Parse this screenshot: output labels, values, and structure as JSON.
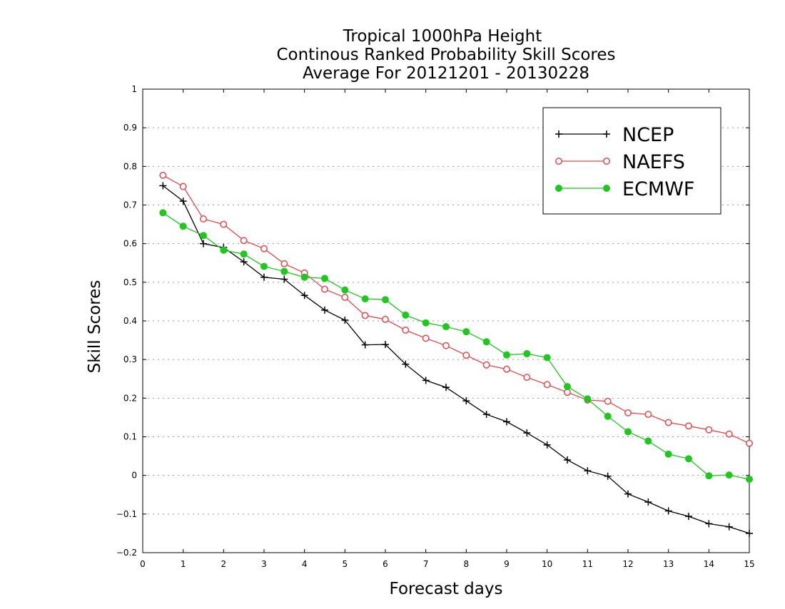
{
  "chart_data": {
    "type": "line",
    "title": [
      "Tropical 1000hPa Height",
      "Continous Ranked Probability Skill Scores",
      "Average For 20121201 - 20130228"
    ],
    "xlabel": "Forecast days",
    "ylabel": "Skill Scores",
    "xlim": [
      0,
      15
    ],
    "ylim": [
      -0.2,
      1
    ],
    "xticks": [
      "0",
      "1",
      "2",
      "3",
      "4",
      "5",
      "6",
      "7",
      "8",
      "9",
      "10",
      "11",
      "12",
      "13",
      "14",
      "15"
    ],
    "yticks": [
      "−0.2",
      "−0.1",
      "0",
      "0.1",
      "0.2",
      "0.3",
      "0.4",
      "0.5",
      "0.6",
      "0.7",
      "0.8",
      "0.9",
      "1"
    ],
    "grid": "horizontal dotted",
    "legend_position": "top-right",
    "x": [
      0.5,
      1,
      1.5,
      2,
      2.5,
      3,
      3.5,
      4,
      4.5,
      5,
      5.5,
      6,
      6.5,
      7,
      7.5,
      8,
      8.5,
      9,
      9.5,
      10,
      10.5,
      11,
      11.5,
      12,
      12.5,
      13,
      13.5,
      14,
      14.5,
      15
    ],
    "series": [
      {
        "name": "NCEP",
        "color": "#000000",
        "marker": "plus",
        "values": [
          0.75,
          0.71,
          0.6,
          0.59,
          0.553,
          0.513,
          0.508,
          0.466,
          0.428,
          0.402,
          0.338,
          0.339,
          0.288,
          0.246,
          0.228,
          0.193,
          0.158,
          0.139,
          0.11,
          0.079,
          0.04,
          0.012,
          -0.002,
          -0.048,
          -0.069,
          -0.092,
          -0.106,
          -0.125,
          -0.133,
          -0.15
        ]
      },
      {
        "name": "NAEFS",
        "color": "#e8474a",
        "marker": "open-circle",
        "values": [
          0.777,
          0.748,
          0.664,
          0.65,
          0.608,
          0.587,
          0.548,
          0.524,
          0.482,
          0.461,
          0.414,
          0.404,
          0.376,
          0.355,
          0.336,
          0.311,
          0.286,
          0.275,
          0.254,
          0.235,
          0.215,
          0.195,
          0.192,
          0.162,
          0.158,
          0.137,
          0.128,
          0.118,
          0.107,
          0.083
        ]
      },
      {
        "name": "ECMWF",
        "color": "#1ec81e",
        "marker": "filled-circle",
        "values": [
          0.68,
          0.645,
          0.621,
          0.583,
          0.573,
          0.541,
          0.528,
          0.513,
          0.51,
          0.48,
          0.457,
          0.455,
          0.415,
          0.395,
          0.385,
          0.372,
          0.346,
          0.312,
          0.315,
          0.305,
          0.23,
          0.198,
          0.153,
          0.113,
          0.089,
          0.055,
          0.043,
          -0.001,
          0.001,
          -0.01
        ]
      }
    ]
  }
}
